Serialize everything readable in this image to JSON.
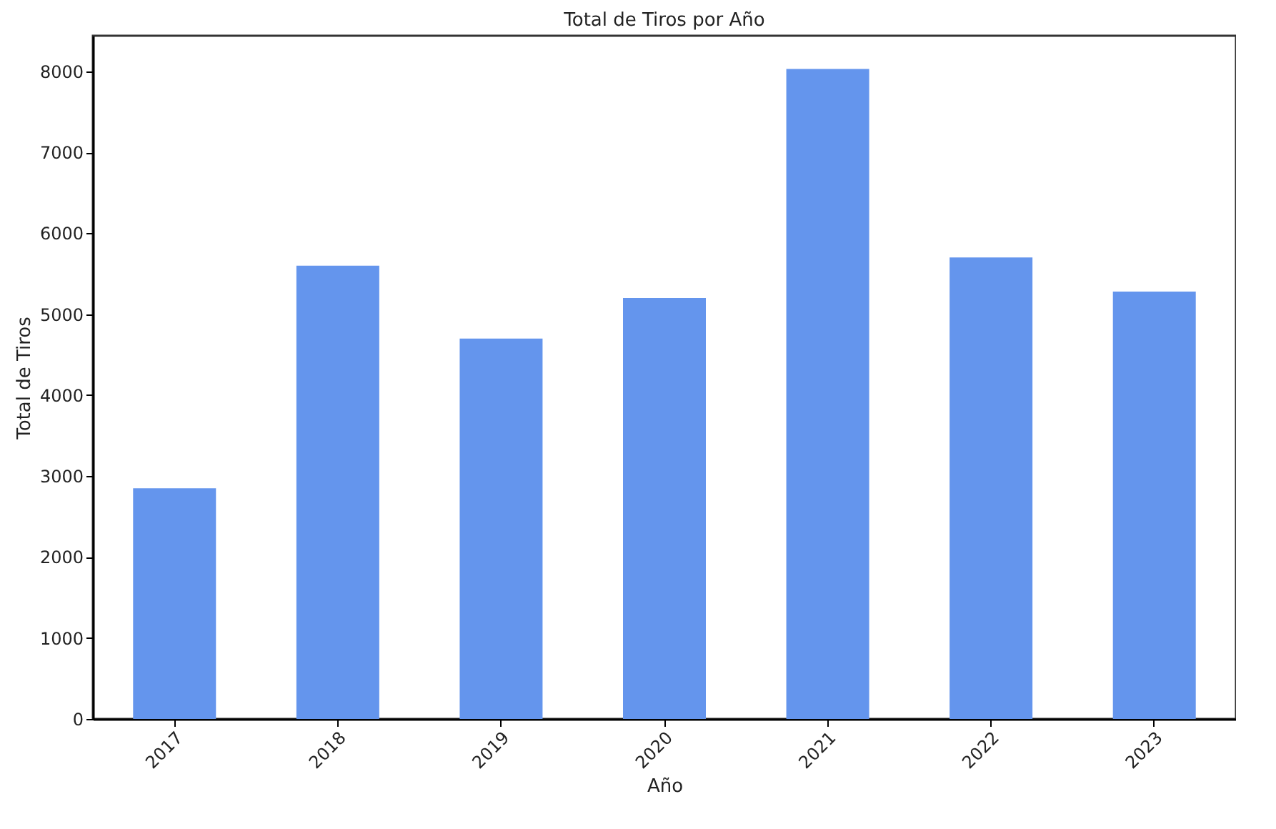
{
  "chart_data": {
    "type": "bar",
    "title": "Total de Tiros por Año",
    "xlabel": "Año",
    "ylabel": "Total de Tiros",
    "categories": [
      "2017",
      "2018",
      "2019",
      "2020",
      "2021",
      "2022",
      "2023"
    ],
    "values": [
      2850,
      5600,
      4700,
      5200,
      8030,
      5700,
      5280
    ],
    "color": "#6495ed",
    "ylim": [
      0,
      8440
    ],
    "yticks": [
      0,
      1000,
      2000,
      3000,
      4000,
      5000,
      6000,
      7000,
      8000
    ],
    "grid": false
  }
}
